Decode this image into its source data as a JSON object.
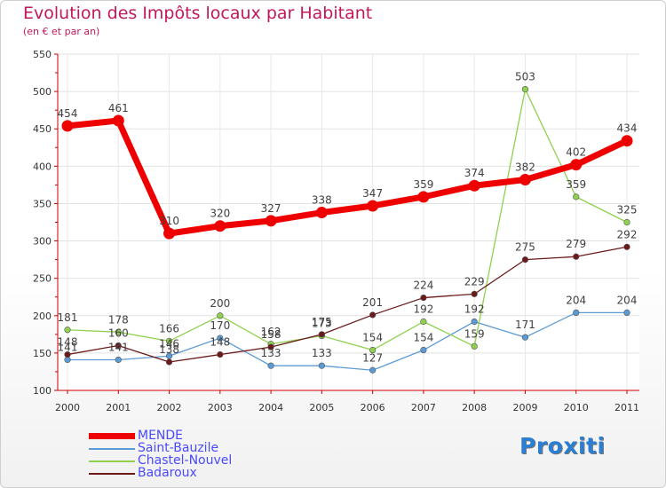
{
  "title": "Evolution des Impôts locaux par Habitant",
  "subtitle": "(en € et par an)",
  "logo": {
    "text": "Proxiti",
    "colors": [
      "#2a7fd4",
      "#f08a1c",
      "#2a7fd4",
      "#e6c21a",
      "#d62a2a",
      "#2a7fd4",
      "#7ab51d"
    ]
  },
  "chart_data": {
    "type": "line",
    "title": "Evolution des Impôts locaux par Habitant",
    "subtitle": "(en € et par an)",
    "xlabel": "",
    "ylabel": "",
    "categories": [
      "2000",
      "2001",
      "2002",
      "2003",
      "2004",
      "2005",
      "2006",
      "2007",
      "2008",
      "2009",
      "2010",
      "2011"
    ],
    "ylim": [
      100,
      550
    ],
    "yticks": [
      "100",
      "150",
      "200",
      "250",
      "300",
      "350",
      "400",
      "450",
      "500",
      "550"
    ],
    "grid": true,
    "legend_position": "bottom-left",
    "series": [
      {
        "name": "MENDE",
        "color": "#ee0000",
        "values": [
          454,
          461,
          310,
          320,
          327,
          338,
          347,
          359,
          374,
          382,
          402,
          434
        ]
      },
      {
        "name": "Saint-Bauzile",
        "color": "#5b9bd5",
        "values": [
          141,
          141,
          146,
          170,
          133,
          133,
          127,
          154,
          192,
          171,
          204,
          204
        ]
      },
      {
        "name": "Chastel-Nouvel",
        "color": "#8fd14f",
        "values": [
          181,
          178,
          166,
          200,
          162,
          173,
          154,
          192,
          159,
          503,
          359,
          325
        ]
      },
      {
        "name": "Badaroux",
        "color": "#6b1a1a",
        "values": [
          148,
          160,
          138,
          148,
          158,
          175,
          201,
          224,
          229,
          275,
          279,
          292
        ]
      }
    ]
  }
}
